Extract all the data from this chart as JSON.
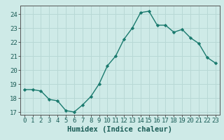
{
  "x": [
    0,
    1,
    2,
    3,
    4,
    5,
    6,
    7,
    8,
    9,
    10,
    11,
    12,
    13,
    14,
    15,
    16,
    17,
    18,
    19,
    20,
    21,
    22,
    23
  ],
  "y": [
    18.6,
    18.6,
    18.5,
    17.9,
    17.8,
    17.1,
    17.0,
    17.5,
    18.1,
    19.0,
    20.3,
    21.0,
    22.2,
    23.0,
    24.1,
    24.2,
    23.2,
    23.2,
    22.7,
    22.9,
    22.3,
    21.9,
    20.9,
    20.5
  ],
  "line_color": "#1a7a6e",
  "marker_color": "#1a7a6e",
  "bg_color": "#ceeae7",
  "grid_color": "#b8d8d5",
  "xlabel": "Humidex (Indice chaleur)",
  "ylim": [
    16.8,
    24.6
  ],
  "yticks": [
    17,
    18,
    19,
    20,
    21,
    22,
    23,
    24
  ],
  "xticks": [
    0,
    1,
    2,
    3,
    4,
    5,
    6,
    7,
    8,
    9,
    10,
    11,
    12,
    13,
    14,
    15,
    16,
    17,
    18,
    19,
    20,
    21,
    22,
    23
  ],
  "tick_fontsize": 6.5,
  "xlabel_fontsize": 7.5
}
